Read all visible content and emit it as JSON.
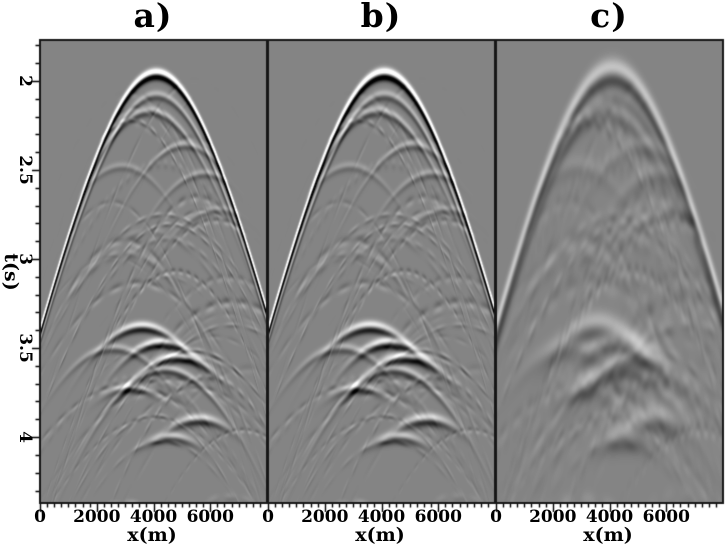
{
  "chart_data": {
    "type": "heatmap",
    "title": "",
    "panels": [
      {
        "label": "a)",
        "amp_scale": 1.0,
        "smooth": 1.0,
        "noise_scale": 1.0
      },
      {
        "label": "b)",
        "amp_scale": 1.0,
        "smooth": 1.1,
        "noise_scale": 0.85
      },
      {
        "label": "c)",
        "amp_scale": 0.42,
        "smooth": 2.6,
        "noise_scale": 0.45
      }
    ],
    "xlabel": "x(m)",
    "ylabel": "t(s)",
    "x_range": [
      0,
      8000
    ],
    "x_ticks": [
      0,
      2000,
      4000,
      6000
    ],
    "x_minor_step": 250,
    "t_range": [
      1.77,
      4.37
    ],
    "t_ticks": [
      2,
      2.5,
      3,
      3.5,
      4
    ],
    "t_minor_step": 0.1,
    "legend": "none",
    "grid": false,
    "colors": {
      "page_bg": "#ffffff",
      "image_bg_gray": "#848484",
      "frame": "#161616",
      "tick": "#000000",
      "text": "#000000"
    },
    "render": {
      "bg_level": 132,
      "contrast": 115,
      "wavelet_norm": 2.33
    },
    "mask": {
      "clean_above_main": true,
      "ramp_s": 0.08,
      "residual": 0.05
    },
    "events": [
      {
        "x0": 4100,
        "t0": 1.96,
        "v": 1470,
        "amp": 1.3,
        "sig": 0.024,
        "L": 90000
      },
      {
        "x0": 4100,
        "t0": 2.08,
        "v": 1480,
        "amp": 0.42,
        "sig": 0.022,
        "L": 90000
      },
      {
        "x0": 3850,
        "t0": 2.17,
        "v": 1620,
        "amp": 0.5,
        "sig": 0.022,
        "L": 2200
      },
      {
        "x0": 5100,
        "t0": 2.36,
        "v": 1650,
        "amp": 0.33,
        "sig": 0.02,
        "L": 1700
      },
      {
        "x0": 5800,
        "t0": 2.52,
        "v": 1700,
        "amp": 0.3,
        "sig": 0.02,
        "L": 1500
      },
      {
        "x0": 6300,
        "t0": 2.72,
        "v": 1750,
        "amp": 0.25,
        "sig": 0.02,
        "L": 1500
      },
      {
        "x0": 2900,
        "t0": 2.48,
        "v": 1650,
        "amp": 0.22,
        "sig": 0.02,
        "L": 1400
      },
      {
        "x0": 3600,
        "t0": 3.38,
        "v": 1600,
        "amp": 0.9,
        "sig": 0.024,
        "L": 1300
      },
      {
        "x0": 4300,
        "t0": 3.47,
        "v": 1580,
        "amp": 1.0,
        "sig": 0.024,
        "L": 1150
      },
      {
        "x0": 4850,
        "t0": 3.55,
        "v": 1620,
        "amp": 0.95,
        "sig": 0.024,
        "L": 1200
      },
      {
        "x0": 4400,
        "t0": 3.62,
        "v": 1550,
        "amp": 0.55,
        "sig": 0.022,
        "L": 2100
      },
      {
        "x0": 2600,
        "t0": 3.5,
        "v": 1600,
        "amp": 0.4,
        "sig": 0.022,
        "L": 1500
      },
      {
        "x0": 5600,
        "t0": 3.9,
        "v": 1600,
        "amp": 0.75,
        "sig": 0.025,
        "L": 900
      },
      {
        "x0": 4600,
        "t0": 4.0,
        "v": 1600,
        "amp": 0.65,
        "sig": 0.024,
        "L": 800
      },
      {
        "x0": 3200,
        "t0": 3.72,
        "v": 1580,
        "amp": 0.7,
        "sig": 0.024,
        "L": 750
      }
    ],
    "noise": {
      "seed": 11,
      "count": 48,
      "t0": [
        1.98,
        4.65
      ],
      "x0": [
        2400,
        7400
      ],
      "v": [
        1420,
        1980
      ],
      "amp": [
        0.07,
        0.28
      ],
      "sig": [
        0.012,
        0.022
      ],
      "L": [
        1200,
        5200
      ],
      "mod_period": [
        260,
        900
      ]
    }
  }
}
